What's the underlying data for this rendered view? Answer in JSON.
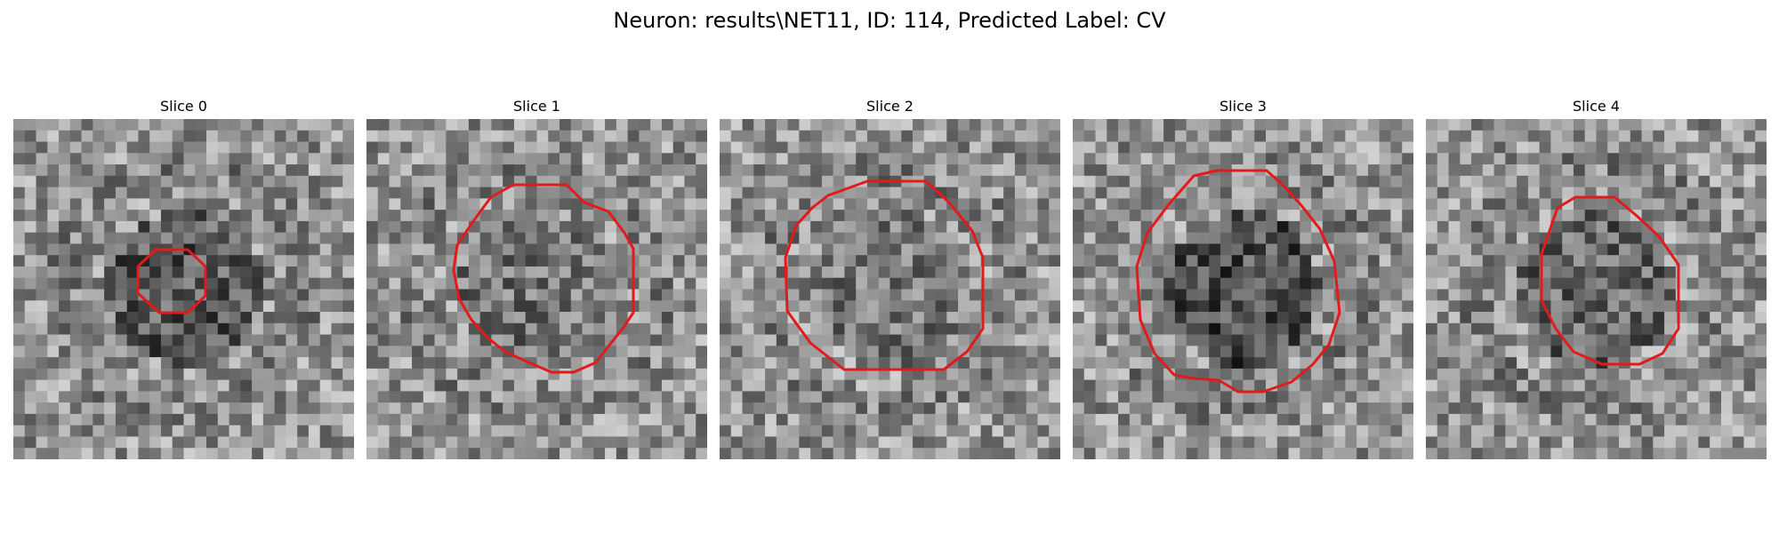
{
  "figure": {
    "title": "Neuron: results\\NET11, ID: 114, Predicted Label: CV"
  },
  "panels": [
    {
      "title": "Slice 0",
      "seed": 11,
      "darkness": 0.22,
      "outline_shape": "small-octagon"
    },
    {
      "title": "Slice 1",
      "seed": 23,
      "darkness": 0.12,
      "outline_shape": "large-polygon"
    },
    {
      "title": "Slice 2",
      "seed": 37,
      "darkness": 0.1,
      "outline_shape": "large-octagon"
    },
    {
      "title": "Slice 3",
      "seed": 49,
      "darkness": 0.28,
      "outline_shape": "irregular-polygon"
    },
    {
      "title": "Slice 4",
      "seed": 61,
      "darkness": 0.18,
      "outline_shape": "medium-polygon"
    }
  ],
  "colors": {
    "outline": "#e31a1c",
    "background": "#ffffff"
  }
}
